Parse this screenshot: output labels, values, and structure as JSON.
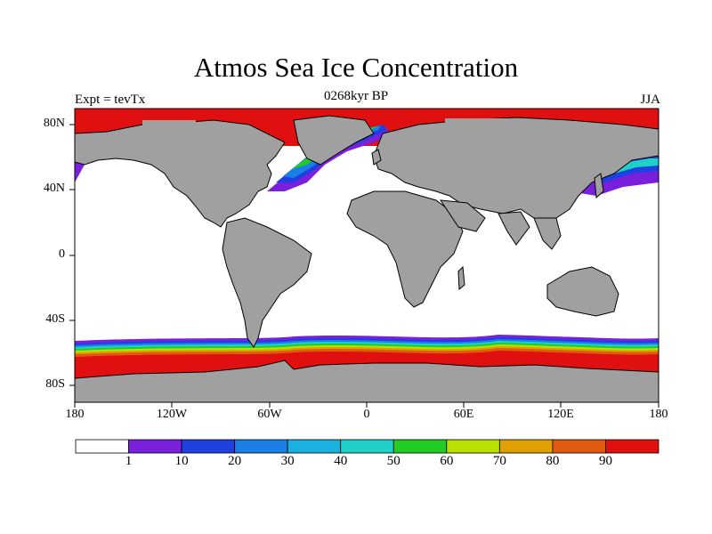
{
  "title": "Atmos Sea Ice Concentration",
  "subtitle": "0268kyr BP",
  "left_label": "Expt = tevTx",
  "right_label": "JJA",
  "map": {
    "projection": "cylindrical-equidistant",
    "lon_range": [
      -180,
      180
    ],
    "lat_range": [
      -90,
      90
    ],
    "land_color": "#a0a0a0",
    "ocean_color": "#ffffff",
    "x_ticks": [
      "180",
      "120W",
      "60W",
      "0",
      "60E",
      "120E",
      "180"
    ],
    "y_ticks": [
      "80N",
      "40N",
      "0",
      "40S",
      "80S"
    ]
  },
  "colorbar": {
    "labels": [
      "1",
      "10",
      "20",
      "30",
      "40",
      "50",
      "60",
      "70",
      "80",
      "90"
    ],
    "colors": [
      "#ffffff",
      "#7a1fdc",
      "#1f3fe0",
      "#1a7fe6",
      "#1ab0e0",
      "#1fd0c8",
      "#22cc22",
      "#b8e000",
      "#e0a000",
      "#e05a10",
      "#e01010"
    ]
  }
}
